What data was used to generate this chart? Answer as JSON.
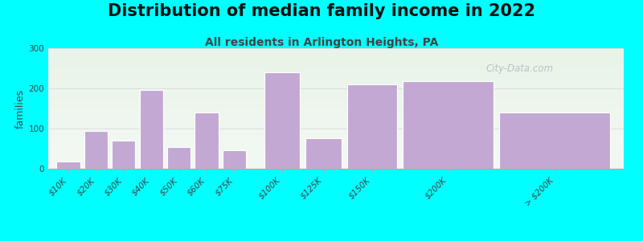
{
  "title": "Distribution of median family income in 2022",
  "subtitle": "All residents in Arlington Heights, PA",
  "ylabel": "families",
  "background_outer": "#00FFFF",
  "background_inner_top": "#e8f4e8",
  "background_inner_bottom": "#f4f8f4",
  "bar_color": "#c4a8d4",
  "bar_edge_color": "#ffffff",
  "categories": [
    "$10K",
    "$20K",
    "$30K",
    "$40K",
    "$50K",
    "$60K",
    "$75K",
    "$100K",
    "$125K",
    "$150K",
    "$200K",
    "> $200K"
  ],
  "values": [
    18,
    95,
    70,
    197,
    55,
    140,
    47,
    240,
    77,
    210,
    218,
    140
  ],
  "bar_lefts": [
    0,
    1,
    2,
    3,
    4,
    5,
    6,
    7.5,
    9,
    10.5,
    12.5,
    16
  ],
  "bar_widths": [
    0.85,
    0.85,
    0.85,
    0.85,
    0.85,
    0.85,
    0.85,
    1.3,
    1.3,
    1.8,
    3.3,
    4.0
  ],
  "tick_positions": [
    0.425,
    1.425,
    2.425,
    3.425,
    4.425,
    5.425,
    6.425,
    8.15,
    9.65,
    11.4,
    14.15,
    18.0
  ],
  "xlim": [
    -0.3,
    20.5
  ],
  "ylim": [
    0,
    300
  ],
  "yticks": [
    0,
    100,
    200,
    300
  ],
  "title_fontsize": 15,
  "subtitle_fontsize": 10,
  "ylabel_fontsize": 9,
  "tick_fontsize": 7.5,
  "watermark_text": "City-Data.com",
  "watermark_color": "#b0b8c0",
  "grid_color": "#dddddd"
}
